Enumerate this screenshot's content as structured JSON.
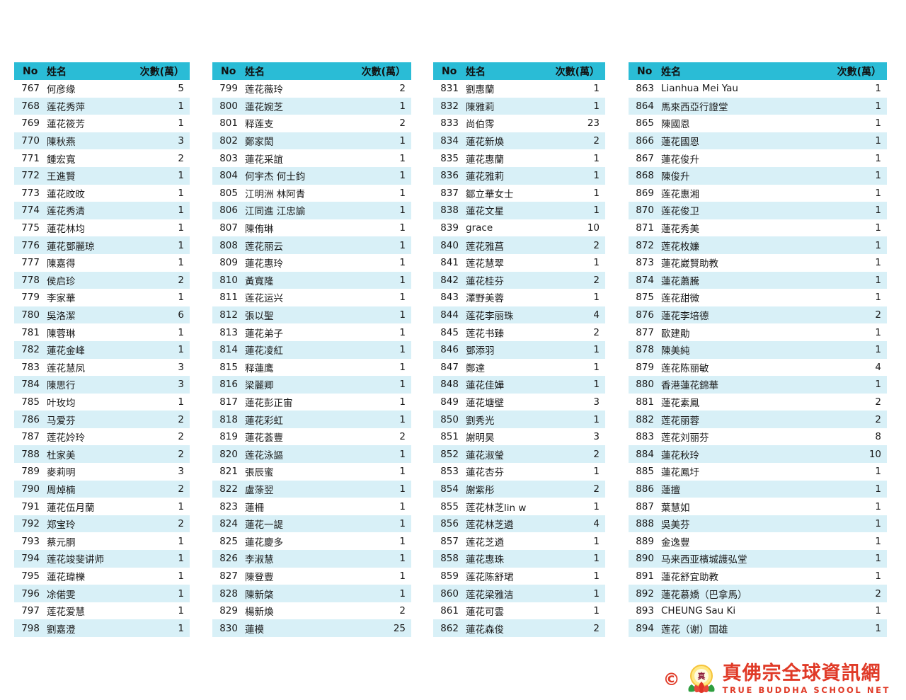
{
  "colors": {
    "header_bg": "#2abcd6",
    "stripe_bg": "#d8f0f7",
    "logo_red": "#e03a27"
  },
  "column_headers": {
    "no": "No",
    "name": "姓名",
    "count": "次數(萬）"
  },
  "tables": [
    {
      "rows": [
        {
          "no": "767",
          "name": "何彦缘",
          "count": "5"
        },
        {
          "no": "768",
          "name": "莲花秀萍",
          "count": "1"
        },
        {
          "no": "769",
          "name": "蓮花筱芳",
          "count": "1"
        },
        {
          "no": "770",
          "name": "陳秋燕",
          "count": "3"
        },
        {
          "no": "771",
          "name": "鍾宏寬",
          "count": "2"
        },
        {
          "no": "772",
          "name": "王進賢",
          "count": "1"
        },
        {
          "no": "773",
          "name": "蓮花旼旼",
          "count": "1"
        },
        {
          "no": "774",
          "name": "莲花秀清",
          "count": "1"
        },
        {
          "no": "775",
          "name": "蓮花林均",
          "count": "1"
        },
        {
          "no": "776",
          "name": "蓮花鄧麗琼",
          "count": "1"
        },
        {
          "no": "777",
          "name": "陳嘉得",
          "count": "1"
        },
        {
          "no": "778",
          "name": "侯启珍",
          "count": "2"
        },
        {
          "no": "779",
          "name": "李家華",
          "count": "1"
        },
        {
          "no": "780",
          "name": "吳洛潔",
          "count": "6"
        },
        {
          "no": "781",
          "name": "陳蓉琳",
          "count": "1"
        },
        {
          "no": "782",
          "name": "蓮花金峰",
          "count": "1"
        },
        {
          "no": "783",
          "name": "莲花慧凤",
          "count": "3"
        },
        {
          "no": "784",
          "name": "陳思行",
          "count": "3"
        },
        {
          "no": "785",
          "name": "叶玫均",
          "count": "1"
        },
        {
          "no": "786",
          "name": "马爱芬",
          "count": "2"
        },
        {
          "no": "787",
          "name": "莲花姈玲",
          "count": "2"
        },
        {
          "no": "788",
          "name": "杜家美",
          "count": "2"
        },
        {
          "no": "789",
          "name": "麥莉明",
          "count": "3"
        },
        {
          "no": "790",
          "name": "周焯楠",
          "count": "2"
        },
        {
          "no": "791",
          "name": "蓮花伍月蘭",
          "count": "1"
        },
        {
          "no": "792",
          "name": "郑宝玲",
          "count": "2"
        },
        {
          "no": "793",
          "name": "蔡元胴",
          "count": "1"
        },
        {
          "no": "794",
          "name": "莲花竣斐讲师",
          "count": "1"
        },
        {
          "no": "795",
          "name": "蓮花瑋櫟",
          "count": "1"
        },
        {
          "no": "796",
          "name": "凃偌雯",
          "count": "1"
        },
        {
          "no": "797",
          "name": "莲花爱慧",
          "count": "1"
        },
        {
          "no": "798",
          "name": "劉嘉澄",
          "count": "1"
        }
      ]
    },
    {
      "rows": [
        {
          "no": "799",
          "name": "莲花薇玲",
          "count": "2"
        },
        {
          "no": "800",
          "name": "蓮花婉芝",
          "count": "1"
        },
        {
          "no": "801",
          "name": "释莲支",
          "count": "2"
        },
        {
          "no": "802",
          "name": "鄭家閎",
          "count": "1"
        },
        {
          "no": "803",
          "name": "蓮花采誼",
          "count": "1"
        },
        {
          "no": "804",
          "name": "何宇杰 何士鈞",
          "count": "1"
        },
        {
          "no": "805",
          "name": "江明洲 林阿青",
          "count": "1"
        },
        {
          "no": "806",
          "name": "江同進 江忠諭",
          "count": "1"
        },
        {
          "no": "807",
          "name": "陳侑琳",
          "count": "1"
        },
        {
          "no": "808",
          "name": "莲花丽云",
          "count": "1"
        },
        {
          "no": "809",
          "name": "蓮花惠玲",
          "count": "1"
        },
        {
          "no": "810",
          "name": "黃寬隆",
          "count": "1"
        },
        {
          "no": "811",
          "name": "莲花运兴",
          "count": "1"
        },
        {
          "no": "812",
          "name": "張以聖",
          "count": "1"
        },
        {
          "no": "813",
          "name": "蓮花弟子",
          "count": "1"
        },
        {
          "no": "814",
          "name": "蓮花凌紅",
          "count": "1"
        },
        {
          "no": "815",
          "name": "释蓮鹰",
          "count": "1"
        },
        {
          "no": "816",
          "name": "梁麗卿",
          "count": "1"
        },
        {
          "no": "817",
          "name": "蓮花彭正宙",
          "count": "1"
        },
        {
          "no": "818",
          "name": "蓮花彩虹",
          "count": "1"
        },
        {
          "no": "819",
          "name": "蓮花荟豐",
          "count": "2"
        },
        {
          "no": "820",
          "name": "莲花泳謳",
          "count": "1"
        },
        {
          "no": "821",
          "name": "張辰蜜",
          "count": "1"
        },
        {
          "no": "822",
          "name": "盧蒤翌",
          "count": "1"
        },
        {
          "no": "823",
          "name": "蓮柵",
          "count": "1"
        },
        {
          "no": "824",
          "name": "蓮花一諟",
          "count": "1"
        },
        {
          "no": "825",
          "name": "蓮花慶多",
          "count": "1"
        },
        {
          "no": "826",
          "name": "李淑慧",
          "count": "1"
        },
        {
          "no": "827",
          "name": "陳登豐",
          "count": "1"
        },
        {
          "no": "828",
          "name": "陳新棨",
          "count": "1"
        },
        {
          "no": "829",
          "name": "楊新煥",
          "count": "2"
        },
        {
          "no": "830",
          "name": "蓮模",
          "count": "25"
        }
      ]
    },
    {
      "rows": [
        {
          "no": "831",
          "name": "劉惠蘭",
          "count": "1"
        },
        {
          "no": "832",
          "name": "陳雅莉",
          "count": "1"
        },
        {
          "no": "833",
          "name": "尚伯霗",
          "count": "23"
        },
        {
          "no": "834",
          "name": "蓮花新煥",
          "count": "2"
        },
        {
          "no": "835",
          "name": "蓮花惠蘭",
          "count": "1"
        },
        {
          "no": "836",
          "name": "蓮花雅莉",
          "count": "1"
        },
        {
          "no": "837",
          "name": "鄒立華女士",
          "count": "1"
        },
        {
          "no": "838",
          "name": "蓮花文星",
          "count": "1"
        },
        {
          "no": "839",
          "name": "grace",
          "count": "10"
        },
        {
          "no": "840",
          "name": "莲花雅菖",
          "count": "2"
        },
        {
          "no": "841",
          "name": "莲花慧翠",
          "count": "1"
        },
        {
          "no": "842",
          "name": "蓮花桂芬",
          "count": "2"
        },
        {
          "no": "843",
          "name": "澤野美蓉",
          "count": "1"
        },
        {
          "no": "844",
          "name": "莲花李丽珠",
          "count": "4"
        },
        {
          "no": "845",
          "name": "莲花书臻",
          "count": "2"
        },
        {
          "no": "846",
          "name": "鄧添羽",
          "count": "1"
        },
        {
          "no": "847",
          "name": "鄭達",
          "count": "1"
        },
        {
          "no": "848",
          "name": "蓮花佳嬅",
          "count": "1"
        },
        {
          "no": "849",
          "name": "蓮花塘壁",
          "count": "3"
        },
        {
          "no": "850",
          "name": "劉秀光",
          "count": "1"
        },
        {
          "no": "851",
          "name": "謝明昊",
          "count": "3"
        },
        {
          "no": "852",
          "name": "蓮花淑瑩",
          "count": "2"
        },
        {
          "no": "853",
          "name": "蓮花杏芬",
          "count": "1"
        },
        {
          "no": "854",
          "name": "謝紫彤",
          "count": "2"
        },
        {
          "no": "855",
          "name": "莲花林芝lin w",
          "count": "1"
        },
        {
          "no": "856",
          "name": "莲花林芝遴",
          "count": "4"
        },
        {
          "no": "857",
          "name": "莲花芝遴",
          "count": "1"
        },
        {
          "no": "858",
          "name": "蓮花惠珠",
          "count": "1"
        },
        {
          "no": "859",
          "name": "莲花陈舒珺",
          "count": "1"
        },
        {
          "no": "860",
          "name": "莲花梁雅洁",
          "count": "1"
        },
        {
          "no": "861",
          "name": "蓮花可雲",
          "count": "1"
        },
        {
          "no": "862",
          "name": "蓮花森俊",
          "count": "2"
        }
      ]
    },
    {
      "rows": [
        {
          "no": "863",
          "name": "Lianhua Mei Yau",
          "count": "1"
        },
        {
          "no": "864",
          "name": "馬來西亞行證堂",
          "count": "1"
        },
        {
          "no": "865",
          "name": "陳國恩",
          "count": "1"
        },
        {
          "no": "866",
          "name": "蓮花國恩",
          "count": "1"
        },
        {
          "no": "867",
          "name": "蓮花俊升",
          "count": "1"
        },
        {
          "no": "868",
          "name": "陳俊升",
          "count": "1"
        },
        {
          "no": "869",
          "name": "莲花惠湘",
          "count": "1"
        },
        {
          "no": "870",
          "name": "莲花俊卫",
          "count": "1"
        },
        {
          "no": "871",
          "name": "蓮花秀美",
          "count": "1"
        },
        {
          "no": "872",
          "name": "莲花枚嬚",
          "count": "1"
        },
        {
          "no": "873",
          "name": "蓮花崴賢助教",
          "count": "1"
        },
        {
          "no": "874",
          "name": "蓮花蕭騰",
          "count": "1"
        },
        {
          "no": "875",
          "name": "莲花甜微",
          "count": "1"
        },
        {
          "no": "876",
          "name": "蓮花李培德",
          "count": "2"
        },
        {
          "no": "877",
          "name": "歐建勛",
          "count": "1"
        },
        {
          "no": "878",
          "name": "陳美純",
          "count": "1"
        },
        {
          "no": "879",
          "name": "莲花陈丽敏",
          "count": "4"
        },
        {
          "no": "880",
          "name": "香港蓮花錦華",
          "count": "1"
        },
        {
          "no": "881",
          "name": "蓮花素鳳",
          "count": "2"
        },
        {
          "no": "882",
          "name": "莲花丽蓉",
          "count": "2"
        },
        {
          "no": "883",
          "name": "莲花刘丽芬",
          "count": "8"
        },
        {
          "no": "884",
          "name": "蓮花秋玲",
          "count": "10"
        },
        {
          "no": "885",
          "name": "蓮花鳳圩",
          "count": "1"
        },
        {
          "no": "886",
          "name": "蓮擅",
          "count": "1"
        },
        {
          "no": "887",
          "name": "葉慧如",
          "count": "1"
        },
        {
          "no": "888",
          "name": "吳美芬",
          "count": "1"
        },
        {
          "no": "889",
          "name": "金逸豐",
          "count": "1"
        },
        {
          "no": "890",
          "name": "马来西亚檳城護弘堂",
          "count": "1"
        },
        {
          "no": "891",
          "name": "蓮花舒宜助教",
          "count": "1"
        },
        {
          "no": "892",
          "name": "蓮花慕嬌（巴拿馬）",
          "count": "2"
        },
        {
          "no": "893",
          "name": "CHEUNG Sau  Ki",
          "count": "1"
        },
        {
          "no": "894",
          "name": "莲花（谢）国雄",
          "count": "1"
        }
      ]
    }
  ],
  "footer": {
    "copyright": "©",
    "logo_title": "真佛宗全球資訊網",
    "logo_subtitle": "TRUE BUDDHA SCHOOL NET"
  }
}
